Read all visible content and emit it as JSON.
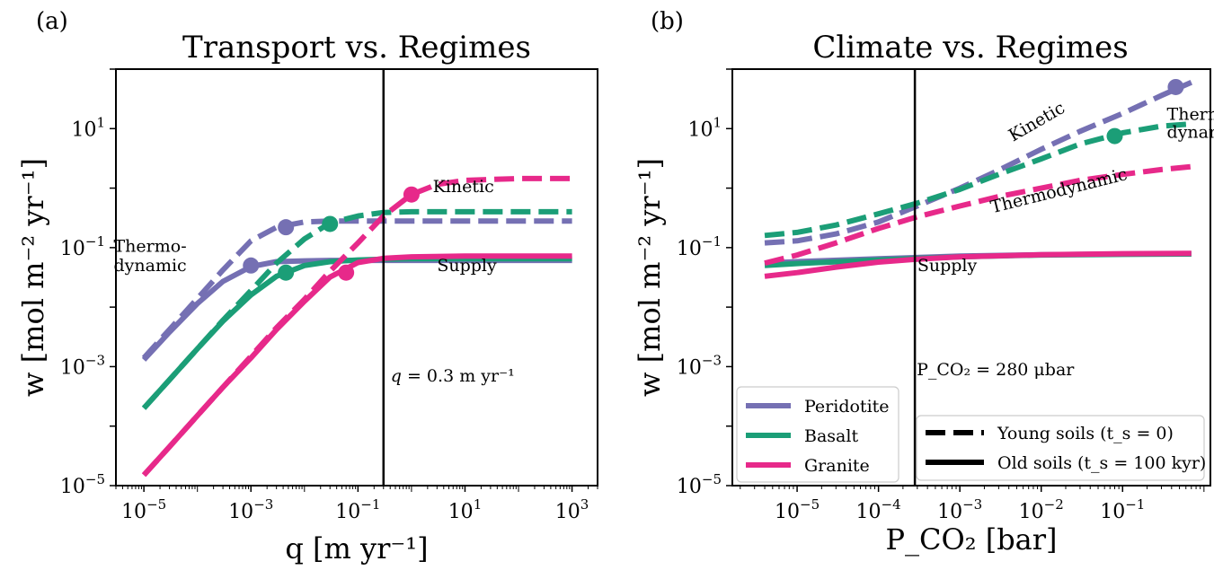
{
  "figure": {
    "panel_labels": [
      "(a)",
      "(b)"
    ]
  },
  "chart_data": [
    {
      "type": "line",
      "title": "Transport vs. Regimes",
      "xlabel": "q [m yr⁻¹]",
      "ylabel": "w [mol m⁻² yr⁻¹]",
      "xscale": "log",
      "yscale": "log",
      "xlim": [
        3e-06,
        3000
      ],
      "ylim": [
        1e-05,
        100
      ],
      "xticks": [
        {
          "value": 1e-05,
          "base": "10",
          "exp": "−5"
        },
        {
          "value": 0.001,
          "base": "10",
          "exp": "−3"
        },
        {
          "value": 0.1,
          "base": "10",
          "exp": "−1"
        },
        {
          "value": 10,
          "base": "10",
          "exp": "1"
        },
        {
          "value": 1000,
          "base": "10",
          "exp": "3"
        }
      ],
      "yticks": [
        {
          "value": 1e-05,
          "base": "10",
          "exp": "−5"
        },
        {
          "value": 0.001,
          "base": "10",
          "exp": "−3"
        },
        {
          "value": 0.1,
          "base": "10",
          "exp": "−1"
        },
        {
          "value": 10,
          "base": "10",
          "exp": "1"
        }
      ],
      "vline": {
        "x": 0.3,
        "label": "q = 0.3 m yr⁻¹"
      },
      "annotations": [
        {
          "text": "Thermo-",
          "x": 2e-06,
          "y": 0.085
        },
        {
          "text": "dynamic",
          "x": 2e-06,
          "y": 0.04
        },
        {
          "text": "Kinetic",
          "x": 2.5,
          "y": 0.85
        },
        {
          "text": "Supply",
          "x": 3.0,
          "y": 0.04
        }
      ],
      "series": [
        {
          "name": "Peridotite",
          "soil": "old",
          "color": "#7570b3",
          "x": [
            1e-05,
            3e-05,
            0.0001,
            0.0003,
            0.001,
            0.003,
            0.01,
            0.03,
            0.1,
            1,
            10,
            100,
            1000
          ],
          "y": [
            0.0013,
            0.0038,
            0.0115,
            0.027,
            0.048,
            0.058,
            0.06,
            0.061,
            0.061,
            0.061,
            0.061,
            0.061,
            0.061
          ]
        },
        {
          "name": "Peridotite",
          "soil": "young",
          "color": "#7570b3",
          "x": [
            1e-05,
            3e-05,
            0.0001,
            0.0003,
            0.001,
            0.003,
            0.01,
            0.03,
            0.1,
            1,
            10,
            100,
            1000
          ],
          "y": [
            0.0014,
            0.0042,
            0.014,
            0.042,
            0.13,
            0.22,
            0.27,
            0.28,
            0.28,
            0.28,
            0.28,
            0.28,
            0.28
          ]
        },
        {
          "name": "Basalt",
          "soil": "old",
          "color": "#1b9e77",
          "x": [
            1e-05,
            3e-05,
            0.0001,
            0.0003,
            0.001,
            0.003,
            0.01,
            0.03,
            0.1,
            0.3,
            1,
            10,
            100,
            1000
          ],
          "y": [
            0.0002,
            0.0006,
            0.002,
            0.0058,
            0.016,
            0.033,
            0.05,
            0.058,
            0.062,
            0.064,
            0.065,
            0.065,
            0.065,
            0.065
          ]
        },
        {
          "name": "Basalt",
          "soil": "young",
          "color": "#1b9e77",
          "x": [
            1e-05,
            3e-05,
            0.0001,
            0.0003,
            0.001,
            0.003,
            0.01,
            0.03,
            0.1,
            0.3,
            1,
            10,
            100,
            1000
          ],
          "y": [
            0.0002,
            0.0006,
            0.002,
            0.006,
            0.019,
            0.055,
            0.14,
            0.26,
            0.34,
            0.39,
            0.4,
            0.4,
            0.4,
            0.4
          ]
        },
        {
          "name": "Granite",
          "soil": "old",
          "color": "#e7298a",
          "x": [
            1e-05,
            3e-05,
            0.0001,
            0.0003,
            0.001,
            0.003,
            0.01,
            0.03,
            0.1,
            0.3,
            1,
            10,
            100,
            1000
          ],
          "y": [
            1.5e-05,
            4.5e-05,
            0.00015,
            0.00045,
            0.0014,
            0.0042,
            0.0125,
            0.032,
            0.056,
            0.066,
            0.07,
            0.072,
            0.072,
            0.072
          ]
        },
        {
          "name": "Granite",
          "soil": "young",
          "color": "#e7298a",
          "x": [
            1e-05,
            3e-05,
            0.0001,
            0.0003,
            0.001,
            0.003,
            0.01,
            0.03,
            0.1,
            0.3,
            1,
            3,
            10,
            100,
            1000
          ],
          "y": [
            1.5e-05,
            4.5e-05,
            0.00015,
            0.00045,
            0.0015,
            0.0045,
            0.0135,
            0.04,
            0.12,
            0.34,
            0.78,
            1.15,
            1.35,
            1.45,
            1.45
          ]
        }
      ],
      "markers": [
        {
          "series": "Peridotite",
          "x": 0.001,
          "y": 0.05,
          "color": "#7570b3"
        },
        {
          "series": "Peridotite",
          "x": 0.0045,
          "y": 0.22,
          "color": "#7570b3"
        },
        {
          "series": "Basalt",
          "x": 0.0045,
          "y": 0.038,
          "color": "#1b9e77"
        },
        {
          "series": "Basalt",
          "x": 0.03,
          "y": 0.25,
          "color": "#1b9e77"
        },
        {
          "series": "Granite",
          "x": 0.06,
          "y": 0.038,
          "color": "#e7298a"
        },
        {
          "series": "Granite",
          "x": 1.0,
          "y": 0.78,
          "color": "#e7298a"
        }
      ]
    },
    {
      "type": "line",
      "title": "Climate vs. Regimes",
      "xlabel": "P_CO₂ [bar]",
      "ylabel": "w [mol m⁻² yr⁻¹]",
      "xscale": "log",
      "yscale": "log",
      "xlim": [
        1.6e-06,
        1.2
      ],
      "ylim": [
        1e-05,
        100
      ],
      "xticks": [
        {
          "value": 1e-05,
          "base": "10",
          "exp": "−5"
        },
        {
          "value": 0.0001,
          "base": "10",
          "exp": "−4"
        },
        {
          "value": 0.001,
          "base": "10",
          "exp": "−3"
        },
        {
          "value": 0.01,
          "base": "10",
          "exp": "−2"
        },
        {
          "value": 0.1,
          "base": "10",
          "exp": "−1"
        }
      ],
      "yticks": [
        {
          "value": 1e-05,
          "base": "10",
          "exp": "−5"
        },
        {
          "value": 0.001,
          "base": "10",
          "exp": "−3"
        },
        {
          "value": 0.1,
          "base": "10",
          "exp": "−1"
        },
        {
          "value": 10,
          "base": "10",
          "exp": "1"
        }
      ],
      "vline": {
        "x": 0.00028,
        "label": "P_CO₂ = 280 μbar"
      },
      "annotations": [
        {
          "text": "Kinetic",
          "x": 0.0045,
          "y": 6.0,
          "rotate": -30
        },
        {
          "text": "Thermo-",
          "x": 0.35,
          "y": 14.0
        },
        {
          "text": "dynamic",
          "x": 0.35,
          "y": 7.0
        },
        {
          "text": "Thermodynamic",
          "x": 0.0025,
          "y": 0.38,
          "rotate": -14
        },
        {
          "text": "Supply",
          "x": 0.0003,
          "y": 0.04
        }
      ],
      "series": [
        {
          "name": "Peridotite",
          "soil": "young",
          "color": "#7570b3",
          "x": [
            4e-06,
            1e-05,
            3e-05,
            0.0001,
            0.0003,
            0.001,
            0.003,
            0.01,
            0.03,
            0.1,
            0.3,
            0.7
          ],
          "y": [
            0.12,
            0.13,
            0.17,
            0.27,
            0.5,
            1.0,
            2.0,
            4.5,
            9.0,
            18.0,
            36.0,
            60.0
          ]
        },
        {
          "name": "Basalt",
          "soil": "young",
          "color": "#1b9e77",
          "x": [
            4e-06,
            1e-05,
            3e-05,
            0.0001,
            0.0003,
            0.001,
            0.003,
            0.01,
            0.03,
            0.1,
            0.3,
            0.7
          ],
          "y": [
            0.16,
            0.18,
            0.24,
            0.37,
            0.56,
            0.95,
            1.7,
            3.1,
            5.5,
            8.5,
            11.0,
            12.0
          ]
        },
        {
          "name": "Granite",
          "soil": "young",
          "color": "#e7298a",
          "x": [
            4e-06,
            1e-05,
            3e-05,
            0.0001,
            0.0003,
            0.001,
            0.003,
            0.01,
            0.03,
            0.1,
            0.3,
            0.7
          ],
          "y": [
            0.055,
            0.075,
            0.12,
            0.21,
            0.33,
            0.5,
            0.72,
            1.0,
            1.35,
            1.7,
            2.05,
            2.3
          ]
        },
        {
          "name": "Peridotite",
          "soil": "old",
          "color": "#7570b3",
          "x": [
            4e-06,
            1e-05,
            0.0001,
            0.001,
            0.01,
            0.1,
            0.7
          ],
          "y": [
            0.055,
            0.058,
            0.065,
            0.072,
            0.076,
            0.078,
            0.079
          ]
        },
        {
          "name": "Basalt",
          "soil": "old",
          "color": "#1b9e77",
          "x": [
            4e-06,
            1e-05,
            0.0001,
            0.001,
            0.01,
            0.1,
            0.7
          ],
          "y": [
            0.05,
            0.054,
            0.062,
            0.07,
            0.075,
            0.077,
            0.078
          ]
        },
        {
          "name": "Granite",
          "soil": "old",
          "color": "#e7298a",
          "x": [
            4e-06,
            1e-05,
            3e-05,
            0.0001,
            0.0003,
            0.001,
            0.01,
            0.1,
            0.7
          ],
          "y": [
            0.033,
            0.038,
            0.047,
            0.057,
            0.064,
            0.07,
            0.076,
            0.079,
            0.08
          ]
        }
      ],
      "markers": [
        {
          "series": "Peridotite",
          "x": 0.45,
          "y": 50.0,
          "color": "#7570b3"
        },
        {
          "series": "Basalt",
          "x": 0.08,
          "y": 7.5,
          "color": "#1b9e77"
        }
      ],
      "legend_rocks": {
        "placement": "lower-left",
        "entries": [
          {
            "label": "Peridotite",
            "color": "#7570b3"
          },
          {
            "label": "Basalt",
            "color": "#1b9e77"
          },
          {
            "label": "Granite",
            "color": "#e7298a"
          }
        ]
      },
      "legend_soils": {
        "placement": "lower-right",
        "entries": [
          {
            "label": "Young soils (t_s = 0)",
            "style": "dashed"
          },
          {
            "label": "Old soils (t_s = 100 kyr)",
            "style": "solid"
          }
        ]
      }
    }
  ]
}
